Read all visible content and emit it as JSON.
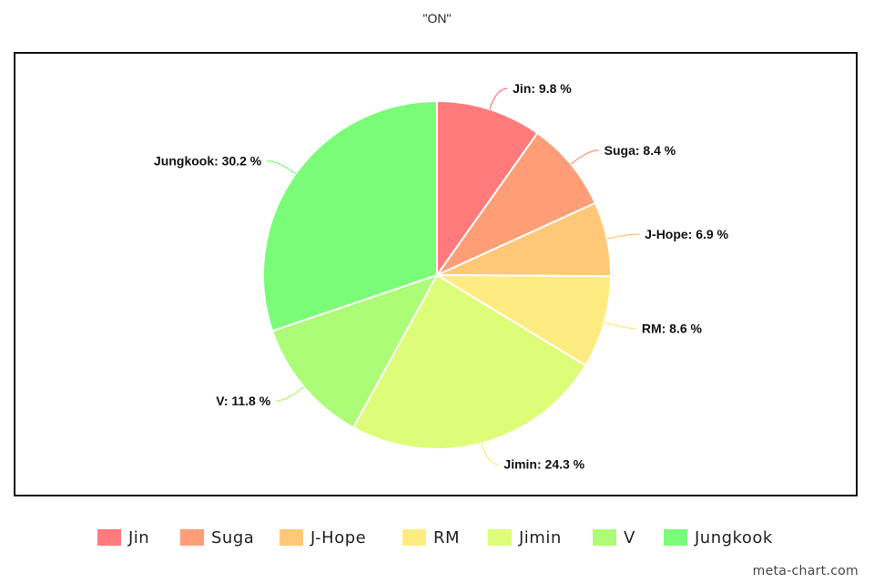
{
  "chart_data": {
    "type": "pie",
    "title": "\"ON\"",
    "categories": [
      "Jin",
      "Suga",
      "J-Hope",
      "RM",
      "Jimin",
      "V",
      "Jungkook"
    ],
    "values": [
      9.8,
      8.4,
      6.9,
      8.6,
      24.3,
      11.8,
      30.2
    ],
    "value_suffix": " %",
    "colors": [
      "#ff7a7a",
      "#ff9e76",
      "#ffc878",
      "#ffec80",
      "#ddfc78",
      "#acfc78",
      "#7afc78"
    ],
    "legend_position": "bottom",
    "slice_labels": [
      "Jin: 9.8 %",
      "Suga: 8.4 %",
      "J-Hope: 6.9 %",
      "RM: 8.6 %",
      "Jimin: 24.3 %",
      "V: 11.8 %",
      "Jungkook: 30.2 %"
    ]
  },
  "watermark": "meta-chart.com"
}
